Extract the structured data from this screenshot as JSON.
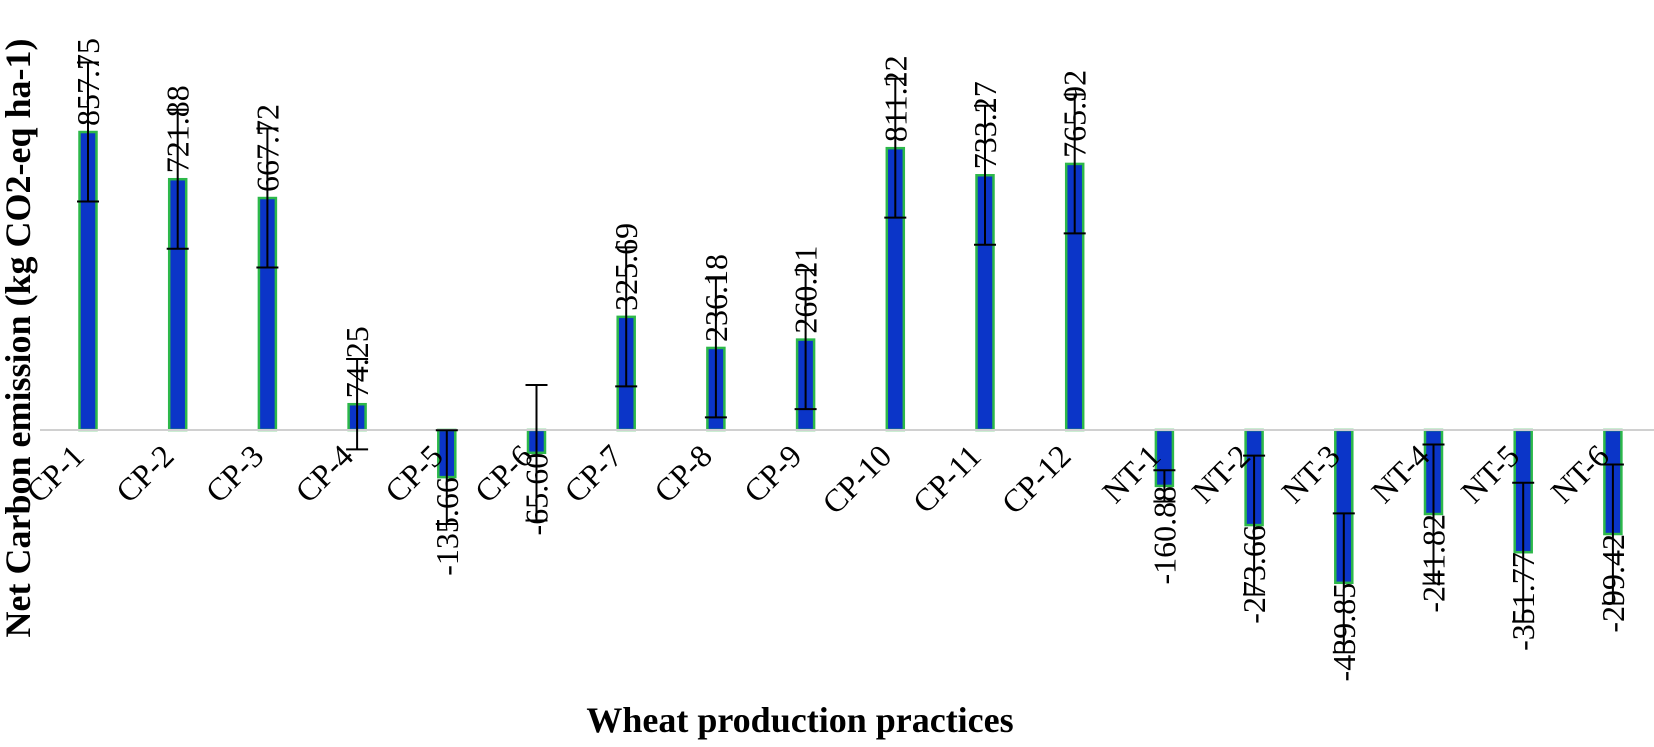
{
  "chart_data": {
    "type": "bar",
    "xlabel": "Wheat production practices",
    "ylabel": "Net Carbon emission (kg CO2-eq ha-1)",
    "categories": [
      "CP-1",
      "CP-2",
      "CP-3",
      "CP-4",
      "CP-5",
      "CP-6",
      "CP-7",
      "CP-8",
      "CP-9",
      "CP-10",
      "CP-11",
      "CP-12",
      "NT-1",
      "NT-2",
      "NT-3",
      "NT-4",
      "NT-5",
      "NT-6"
    ],
    "values": [
      857.75,
      721.88,
      667.72,
      74.25,
      -135.66,
      -65.6,
      325.69,
      236.18,
      260.21,
      811.22,
      733.27,
      765.92,
      -160.88,
      -273.66,
      -439.85,
      -241.82,
      -351.77,
      -299.42
    ],
    "error": [
      200,
      200,
      200,
      130,
      135,
      195,
      200,
      200,
      200,
      200,
      200,
      200,
      45,
      200,
      200,
      200,
      200,
      200
    ],
    "data_labels": [
      "857.75",
      "721.88",
      "667.72",
      "74.25",
      "-135.66",
      "-65.60",
      "325.69",
      "236.18",
      "260.21",
      "811.22",
      "733.27",
      "765.92",
      "-160.88",
      "-273.66",
      "-439.85",
      "-241.82",
      "-351.77",
      "-299.42"
    ],
    "ylim": [
      -800,
      1250
    ],
    "grid": false,
    "legend": "none",
    "colors": {
      "bar_fill": "#0b35c8",
      "bar_edge": "#2db84a",
      "zero_line": "#d0d0d0",
      "error_bar": "#000000"
    }
  }
}
